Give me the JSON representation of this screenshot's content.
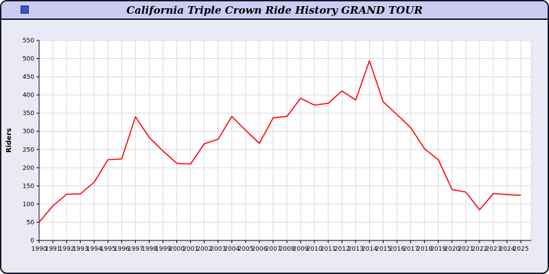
{
  "window": {
    "title": "California Triple Crown Ride History GRAND TOUR",
    "titlebar_bg": "#ccccf2",
    "body_bg": "#eaeaf6",
    "border_color": "#15152a",
    "icon": "image-icon"
  },
  "chart_data": {
    "type": "line",
    "title": "California Triple Crown Ride History GRAND TOUR",
    "xlabel": "",
    "ylabel": "Riders",
    "ylim": [
      0,
      550
    ],
    "yticks": [
      0,
      50,
      100,
      150,
      200,
      250,
      300,
      350,
      400,
      450,
      500,
      550
    ],
    "x": [
      1990,
      1991,
      1992,
      1993,
      1994,
      1995,
      1996,
      1997,
      1998,
      1999,
      2000,
      2001,
      2002,
      2003,
      2004,
      2005,
      2006,
      2007,
      2008,
      2009,
      2010,
      2011,
      2012,
      2013,
      2014,
      2015,
      2016,
      2017,
      2018,
      2019,
      2020,
      2021,
      2022,
      2023,
      2024,
      2025
    ],
    "series": [
      {
        "name": "Riders",
        "color": "#ff0000",
        "values": [
          50,
          95,
          127,
          128,
          160,
          222,
          224,
          340,
          283,
          246,
          212,
          210,
          266,
          278,
          341,
          303,
          267,
          337,
          341,
          391,
          372,
          377,
          411,
          386,
          494,
          381,
          346,
          310,
          252,
          222,
          140,
          133,
          84,
          129,
          126,
          124
        ]
      }
    ],
    "grid": true,
    "grid_color": "#d9d9e2",
    "plot_bg": "#ffffff",
    "axis_color": "#000000",
    "legend": "none"
  }
}
